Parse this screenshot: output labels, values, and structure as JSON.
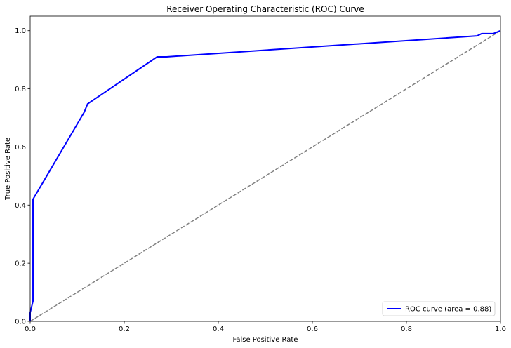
{
  "chart_data": {
    "type": "line",
    "title": "Receiver Operating Characteristic (ROC) Curve",
    "xlabel": "False Positive Rate",
    "ylabel": "True Positive Rate",
    "xlim": [
      0,
      1
    ],
    "ylim": [
      0,
      1.05
    ],
    "x_ticks": [
      0,
      0.2,
      0.4,
      0.6,
      0.8,
      1.0
    ],
    "x_tick_labels": [
      "0.0",
      "0.2",
      "0.4",
      "0.6",
      "0.8",
      "1.0"
    ],
    "y_ticks": [
      0,
      0.2,
      0.4,
      0.6,
      0.8,
      1.0
    ],
    "y_tick_labels": [
      "0.0",
      "0.2",
      "0.4",
      "0.6",
      "0.8",
      "1.0"
    ],
    "grid": false,
    "legend_position": "lower-right",
    "series": [
      {
        "name": "ROC curve (area = 0.88)",
        "color": "#0000ff",
        "style": "solid",
        "x": [
          0.0,
          0.0,
          0.006,
          0.006,
          0.006,
          0.115,
          0.122,
          0.27,
          0.29,
          0.95,
          0.96,
          0.97,
          0.985,
          1.0
        ],
        "y": [
          0.0,
          0.03,
          0.07,
          0.42,
          0.42,
          0.72,
          0.748,
          0.91,
          0.91,
          0.982,
          0.99,
          0.99,
          0.99,
          1.0
        ]
      },
      {
        "color": "#808080",
        "style": "dashed",
        "x": [
          0,
          1
        ],
        "y": [
          0,
          1
        ]
      }
    ]
  }
}
